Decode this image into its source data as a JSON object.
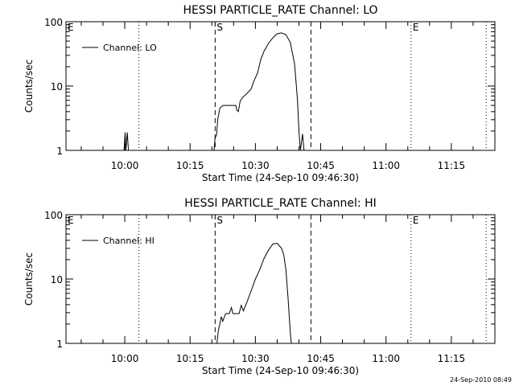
{
  "chart_data": [
    {
      "type": "line",
      "title": "HESSI PARTICLE_RATE Channel: LO",
      "xlabel": "Start Time (24-Sep-10 09:46:30)",
      "ylabel": "Counts/sec",
      "y_scale": "log",
      "ylim": [
        1,
        100
      ],
      "xlim": [
        "09:46:30",
        "11:25:00"
      ],
      "y_ticks": [
        {
          "value": 1,
          "label": "1"
        },
        {
          "value": 10,
          "label": "10"
        },
        {
          "value": 100,
          "label": "100"
        }
      ],
      "x_ticks": [
        {
          "time": "10:00",
          "label": "10:00"
        },
        {
          "time": "10:15",
          "label": "10:15"
        },
        {
          "time": "10:30",
          "label": "10:30"
        },
        {
          "time": "10:45",
          "label": "10:45"
        },
        {
          "time": "11:00",
          "label": "11:00"
        },
        {
          "time": "11:15",
          "label": "11:15"
        }
      ],
      "legend": {
        "position": "top-left",
        "entries": [
          "Channel: LO"
        ]
      },
      "markers": [
        {
          "time": "09:46:30",
          "style": "none",
          "label": "E"
        },
        {
          "time": "10:03:15",
          "style": "dotted",
          "label": ""
        },
        {
          "time": "10:20:45",
          "style": "dashed",
          "label": "S"
        },
        {
          "time": "10:42:45",
          "style": "dashed",
          "label": ""
        },
        {
          "time": "11:05:45",
          "style": "dotted",
          "label": "E"
        },
        {
          "time": "11:23:00",
          "style": "dotted",
          "label": ""
        }
      ],
      "series": [
        {
          "name": "Channel: LO",
          "points": [
            [
              "09:59:50",
              1
            ],
            [
              "10:00:05",
              1.9
            ],
            [
              "10:00:15",
              1
            ],
            [
              "10:00:35",
              1.9
            ],
            [
              "10:00:50",
              1
            ],
            [
              "10:20:30",
              1
            ],
            [
              "10:20:45",
              1.6
            ],
            [
              "10:21:05",
              1.7
            ],
            [
              "10:21:20",
              3
            ],
            [
              "10:21:50",
              4.5
            ],
            [
              "10:22:30",
              5
            ],
            [
              "10:25:30",
              5
            ],
            [
              "10:25:45",
              4.2
            ],
            [
              "10:26:05",
              4
            ],
            [
              "10:26:30",
              5.8
            ],
            [
              "10:27:00",
              6.6
            ],
            [
              "10:28:00",
              7.6
            ],
            [
              "10:29:00",
              9
            ],
            [
              "10:29:40",
              12
            ],
            [
              "10:30:30",
              16
            ],
            [
              "10:31:15",
              26
            ],
            [
              "10:32:00",
              35
            ],
            [
              "10:33:00",
              46
            ],
            [
              "10:34:00",
              56
            ],
            [
              "10:35:00",
              65
            ],
            [
              "10:36:00",
              67
            ],
            [
              "10:37:00",
              63
            ],
            [
              "10:38:00",
              48
            ],
            [
              "10:39:00",
              22
            ],
            [
              "10:39:40",
              6
            ],
            [
              "10:40:00",
              2
            ],
            [
              "10:40:20",
              1
            ],
            [
              "10:40:50",
              1.8
            ],
            [
              "10:41:10",
              1
            ]
          ]
        }
      ]
    },
    {
      "type": "line",
      "title": "HESSI PARTICLE_RATE Channel: HI",
      "xlabel": "Start Time (24-Sep-10 09:46:30)",
      "ylabel": "Counts/sec",
      "y_scale": "log",
      "ylim": [
        1,
        100
      ],
      "xlim": [
        "09:46:30",
        "11:25:00"
      ],
      "y_ticks": [
        {
          "value": 1,
          "label": "1"
        },
        {
          "value": 10,
          "label": "10"
        },
        {
          "value": 100,
          "label": "100"
        }
      ],
      "x_ticks": [
        {
          "time": "10:00",
          "label": "10:00"
        },
        {
          "time": "10:15",
          "label": "10:15"
        },
        {
          "time": "10:30",
          "label": "10:30"
        },
        {
          "time": "10:45",
          "label": "10:45"
        },
        {
          "time": "11:00",
          "label": "11:00"
        },
        {
          "time": "11:15",
          "label": "11:15"
        }
      ],
      "legend": {
        "position": "top-left",
        "entries": [
          "Channel: HI"
        ]
      },
      "markers": [
        {
          "time": "09:46:30",
          "style": "none",
          "label": "E"
        },
        {
          "time": "10:03:15",
          "style": "dotted",
          "label": ""
        },
        {
          "time": "10:20:45",
          "style": "dashed",
          "label": "S"
        },
        {
          "time": "10:42:45",
          "style": "dashed",
          "label": ""
        },
        {
          "time": "11:05:45",
          "style": "dotted",
          "label": "E"
        },
        {
          "time": "11:23:00",
          "style": "dotted",
          "label": ""
        }
      ],
      "series": [
        {
          "name": "Channel: HI",
          "points": [
            [
              "10:21:10",
              1
            ],
            [
              "10:21:30",
              1.6
            ],
            [
              "10:21:50",
              2
            ],
            [
              "10:22:10",
              2.6
            ],
            [
              "10:22:30",
              2.2
            ],
            [
              "10:23:10",
              2.9
            ],
            [
              "10:24:00",
              2.9
            ],
            [
              "10:24:30",
              3.6
            ],
            [
              "10:24:50",
              2.9
            ],
            [
              "10:26:15",
              2.9
            ],
            [
              "10:26:45",
              3.9
            ],
            [
              "10:27:15",
              3.2
            ],
            [
              "10:28:00",
              4.3
            ],
            [
              "10:29:00",
              6.5
            ],
            [
              "10:30:00",
              10
            ],
            [
              "10:31:00",
              14
            ],
            [
              "10:32:00",
              21
            ],
            [
              "10:33:00",
              28
            ],
            [
              "10:34:00",
              35
            ],
            [
              "10:35:00",
              36
            ],
            [
              "10:36:00",
              30
            ],
            [
              "10:36:30",
              24
            ],
            [
              "10:37:00",
              14
            ],
            [
              "10:37:30",
              5
            ],
            [
              "10:38:00",
              1.5
            ],
            [
              "10:38:15",
              1
            ]
          ]
        }
      ]
    }
  ],
  "footer": {
    "stamp": "24-Sep-2010 08:49"
  }
}
